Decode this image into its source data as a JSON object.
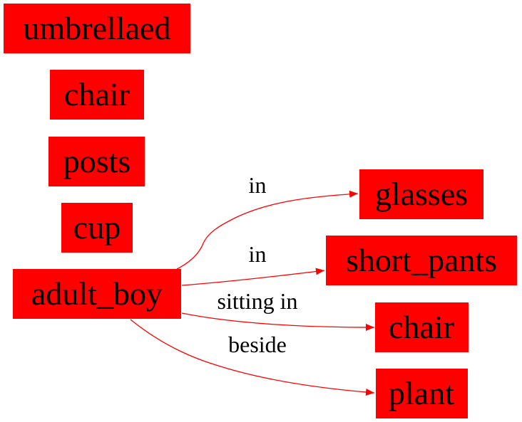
{
  "colors": {
    "node_fill": "#ff0000",
    "edge_stroke": "#ff0000",
    "text": "#000000",
    "background": "#ffffff"
  },
  "nodes": [
    {
      "id": "umbrellaed",
      "label": "umbrellaed"
    },
    {
      "id": "chair_left",
      "label": "chair"
    },
    {
      "id": "posts",
      "label": "posts"
    },
    {
      "id": "cup",
      "label": "cup"
    },
    {
      "id": "adult_boy",
      "label": "adult_boy"
    },
    {
      "id": "glasses",
      "label": "glasses"
    },
    {
      "id": "short_pants",
      "label": "short_pants"
    },
    {
      "id": "chair_right",
      "label": "chair"
    },
    {
      "id": "plant",
      "label": "plant"
    }
  ],
  "edges": [
    {
      "from": "adult_boy",
      "to": "glasses",
      "label": "in"
    },
    {
      "from": "adult_boy",
      "to": "short_pants",
      "label": "in"
    },
    {
      "from": "adult_boy",
      "to": "chair_right",
      "label": "sitting in"
    },
    {
      "from": "adult_boy",
      "to": "plant",
      "label": "beside"
    }
  ]
}
